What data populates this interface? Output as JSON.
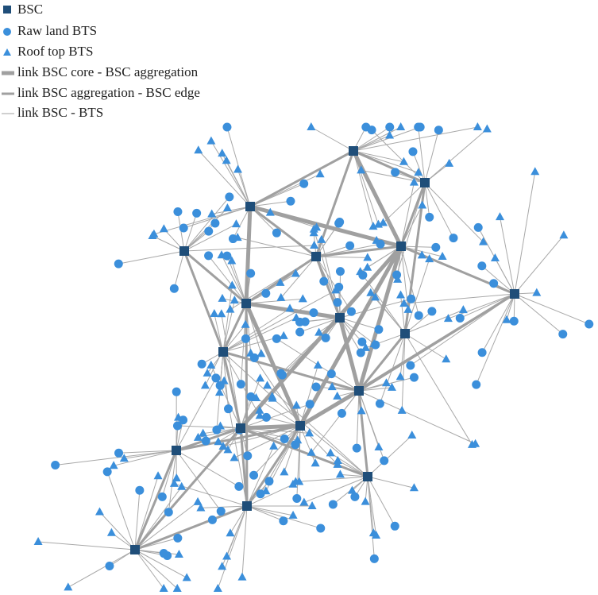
{
  "legend": [
    "BSC",
    "Raw land BTS",
    "Roof top BTS",
    "link BSC core - BSC aggregation",
    "link BSC aggregation - BSC edge",
    "link BSC - BTS"
  ]
}
